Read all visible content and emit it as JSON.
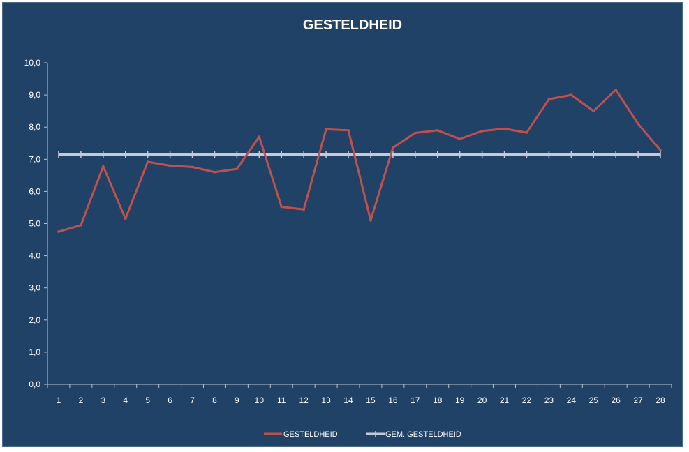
{
  "chart_data": {
    "type": "line",
    "title": "GESTELDHEID",
    "xlabel": "",
    "ylabel": "",
    "ylim": [
      0,
      10
    ],
    "y_ticks": [
      "0,0",
      "1,0",
      "2,0",
      "3,0",
      "4,0",
      "5,0",
      "6,0",
      "7,0",
      "8,0",
      "9,0",
      "10,0"
    ],
    "categories": [
      "1",
      "2",
      "3",
      "4",
      "5",
      "6",
      "7",
      "8",
      "9",
      "10",
      "11",
      "12",
      "13",
      "14",
      "15",
      "16",
      "17",
      "18",
      "19",
      "20",
      "21",
      "22",
      "23",
      "24",
      "25",
      "26",
      "27",
      "28"
    ],
    "series": [
      {
        "name": "GESTELDHEID",
        "color": "#c0504d",
        "values": [
          4.75,
          4.95,
          6.78,
          5.15,
          6.92,
          6.8,
          6.76,
          6.6,
          6.7,
          7.7,
          5.52,
          5.44,
          7.93,
          7.9,
          5.1,
          7.36,
          7.82,
          7.9,
          7.63,
          7.88,
          7.95,
          7.83,
          8.87,
          9.0,
          8.5,
          9.16,
          8.1,
          7.28
        ]
      },
      {
        "name": "GEM. GESTELDHEID",
        "color": "#c8c8dc",
        "values": [
          7.15,
          7.15,
          7.15,
          7.15,
          7.15,
          7.15,
          7.15,
          7.15,
          7.15,
          7.15,
          7.15,
          7.15,
          7.15,
          7.15,
          7.15,
          7.15,
          7.15,
          7.15,
          7.15,
          7.15,
          7.15,
          7.15,
          7.15,
          7.15,
          7.15,
          7.15,
          7.15,
          7.15
        ]
      }
    ],
    "legend_position": "bottom",
    "grid": false
  },
  "colors": {
    "background": "#1f4266",
    "axis": "#b8c4d2",
    "text": "#ffffff"
  }
}
